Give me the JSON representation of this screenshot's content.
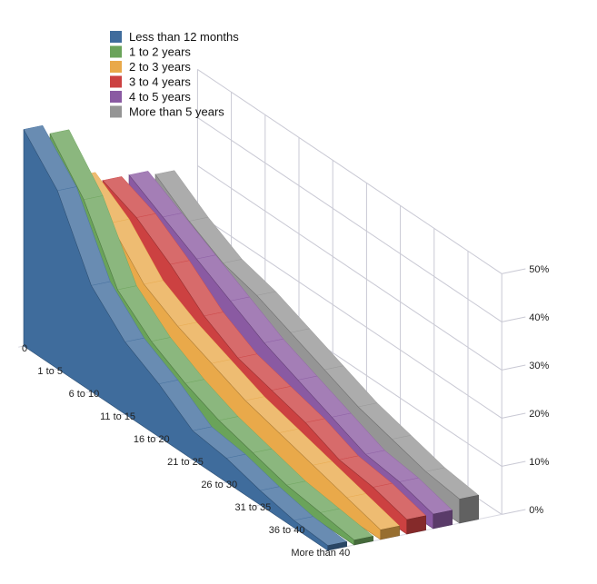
{
  "chart_data": {
    "type": "area",
    "projection": "3d",
    "categories": [
      "0",
      "1 to 5",
      "6 to 10",
      "11 to 15",
      "16 to 20",
      "21 to 25",
      "26 to 30",
      "31 to 35",
      "36 to 40",
      "More than 40"
    ],
    "y_ticks": [
      "0%",
      "10%",
      "20%",
      "30%",
      "40%",
      "50%"
    ],
    "ylim": [
      0,
      50
    ],
    "legend_position": "top-left",
    "grid": true,
    "series": [
      {
        "name": "Less than 12 months",
        "color": "#3f6c9c",
        "values": [
          45,
          37,
          22,
          15,
          11,
          6,
          5,
          3,
          1.5,
          1
        ]
      },
      {
        "name": "1 to 2 years",
        "color": "#6aa35a",
        "values": [
          43,
          34,
          20,
          14,
          10,
          7,
          5,
          3,
          2,
          1
        ]
      },
      {
        "name": "2 to 3 years",
        "color": "#e9a94a",
        "values": [
          33,
          28,
          20,
          16,
          13,
          10,
          8,
          6,
          4,
          2
        ]
      },
      {
        "name": "3  to 4 years",
        "color": "#cc4141",
        "values": [
          31,
          28,
          23,
          17,
          13,
          11,
          9,
          6,
          5,
          3
        ]
      },
      {
        "name": "4 to 5 years",
        "color": "#8a5aa2",
        "values": [
          31,
          27,
          23,
          19,
          15,
          12,
          9,
          6,
          5,
          3
        ]
      },
      {
        "name": "More than 5 years",
        "color": "#959595",
        "values": [
          30,
          25,
          21,
          19,
          16,
          13,
          10,
          8,
          6,
          5
        ]
      }
    ]
  }
}
